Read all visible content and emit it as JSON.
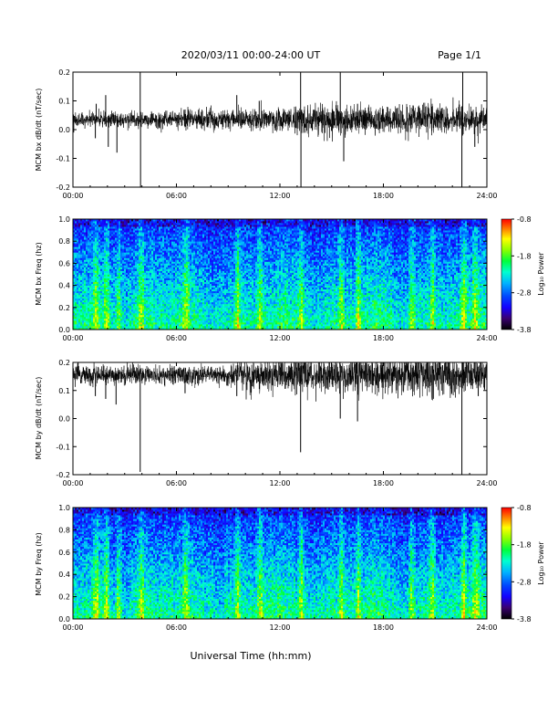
{
  "header": {
    "title": "2020/03/11  00:00-24:00 UT",
    "page": "Page 1/1"
  },
  "xlabel": "Universal Time (hh:mm)",
  "colors": {
    "trace": "#000000",
    "colormap": [
      "#000000",
      "#3a0070",
      "#1400ff",
      "#0046ff",
      "#00b4ff",
      "#00ffd0",
      "#00ff3c",
      "#8cff00",
      "#ffff00",
      "#ff8000",
      "#ff0000"
    ]
  },
  "chart_data": [
    {
      "type": "line",
      "ylabel": "MCM bx dB/dt (nT/sec)",
      "x_ticks": [
        "00:00",
        "06:00",
        "12:00",
        "18:00",
        "24:00"
      ],
      "xlim": [
        0,
        24
      ],
      "ylim": [
        -0.2,
        0.2
      ],
      "y_ticks": [
        "-0.2",
        "-0.1",
        "0.0",
        "0.1",
        "0.2"
      ],
      "baseline": 0.035,
      "noise": [
        [
          0,
          0.012
        ],
        [
          4,
          0.012
        ],
        [
          6,
          0.014
        ],
        [
          9,
          0.016
        ],
        [
          12,
          0.02
        ],
        [
          15,
          0.024
        ],
        [
          18,
          0.022
        ],
        [
          21,
          0.024
        ],
        [
          24,
          0.02
        ]
      ],
      "spikes": [
        [
          1.3,
          -0.03
        ],
        [
          1.35,
          0.09
        ],
        [
          1.9,
          0.12
        ],
        [
          2.05,
          -0.06
        ],
        [
          2.55,
          -0.08
        ],
        [
          3.9,
          0.2
        ],
        [
          3.92,
          -0.2
        ],
        [
          6.5,
          0.07
        ],
        [
          9.5,
          0.12
        ],
        [
          10.8,
          0.1
        ],
        [
          13.2,
          0.2
        ],
        [
          13.22,
          -0.2
        ],
        [
          15.5,
          0.2
        ],
        [
          15.7,
          -0.11
        ],
        [
          16.5,
          0.09
        ],
        [
          20.8,
          0.08
        ],
        [
          22.55,
          -0.2
        ],
        [
          22.6,
          0.2
        ],
        [
          23.3,
          -0.06
        ]
      ]
    },
    {
      "type": "heatmap",
      "ylabel": "MCM bx Freq (hz)",
      "x_ticks": [
        "00:00",
        "06:00",
        "12:00",
        "18:00",
        "24:00"
      ],
      "xlim": [
        0,
        24
      ],
      "ylim": [
        0,
        1.0
      ],
      "y_ticks": [
        "0.0",
        "0.2",
        "0.4",
        "0.6",
        "0.8",
        "1.0"
      ],
      "colorbar": {
        "label": "Log₁₀ Power",
        "ticks": [
          "-0.8",
          "-1.8",
          "-2.8",
          "-3.8"
        ],
        "range": [
          -3.8,
          -0.8
        ]
      },
      "bright_bands": [
        1.3,
        1.9,
        2.6,
        3.9,
        6.5,
        9.5,
        10.8,
        13.2,
        15.5,
        16.5,
        19.6,
        20.8,
        22.6,
        23.3
      ]
    },
    {
      "type": "line",
      "ylabel": "MCM by dB/dt (nT/sec)",
      "x_ticks": [
        "00:00",
        "06:00",
        "12:00",
        "18:00",
        "24:00"
      ],
      "xlim": [
        0,
        24
      ],
      "ylim": [
        -0.2,
        0.2
      ],
      "y_ticks": [
        "-0.2",
        "-0.1",
        "0.0",
        "0.1",
        "0.2"
      ],
      "baseline": 0.155,
      "noise": [
        [
          0,
          0.018
        ],
        [
          4,
          0.014
        ],
        [
          6,
          0.014
        ],
        [
          9,
          0.018
        ],
        [
          10,
          0.026
        ],
        [
          12,
          0.024
        ],
        [
          14,
          0.03
        ],
        [
          18,
          0.03
        ],
        [
          21,
          0.034
        ],
        [
          24,
          0.028
        ]
      ],
      "spikes": [
        [
          0.3,
          0.2
        ],
        [
          1.3,
          0.08
        ],
        [
          1.9,
          0.07
        ],
        [
          2.5,
          0.05
        ],
        [
          3.9,
          -0.19
        ],
        [
          6.5,
          0.09
        ],
        [
          9.5,
          0.08
        ],
        [
          13.2,
          -0.12
        ],
        [
          15.5,
          0.0
        ],
        [
          16.5,
          -0.01
        ],
        [
          22.55,
          -0.2
        ],
        [
          22.6,
          0.2
        ],
        [
          23.5,
          0.08
        ]
      ]
    },
    {
      "type": "heatmap",
      "ylabel": "MCM by Freq (hz)",
      "x_ticks": [
        "00:00",
        "06:00",
        "12:00",
        "18:00",
        "24:00"
      ],
      "xlim": [
        0,
        24
      ],
      "ylim": [
        0,
        1.0
      ],
      "y_ticks": [
        "0.0",
        "0.2",
        "0.4",
        "0.6",
        "0.8",
        "1.0"
      ],
      "colorbar": {
        "label": "Log₁₀ Power",
        "ticks": [
          "-0.8",
          "-1.8",
          "-2.8",
          "-3.8"
        ],
        "range": [
          -3.8,
          -0.8
        ]
      },
      "bright_bands": [
        1.3,
        1.9,
        2.6,
        3.9,
        6.5,
        9.5,
        10.8,
        13.2,
        15.5,
        16.5,
        19.6,
        20.8,
        22.6,
        23.3
      ]
    }
  ]
}
